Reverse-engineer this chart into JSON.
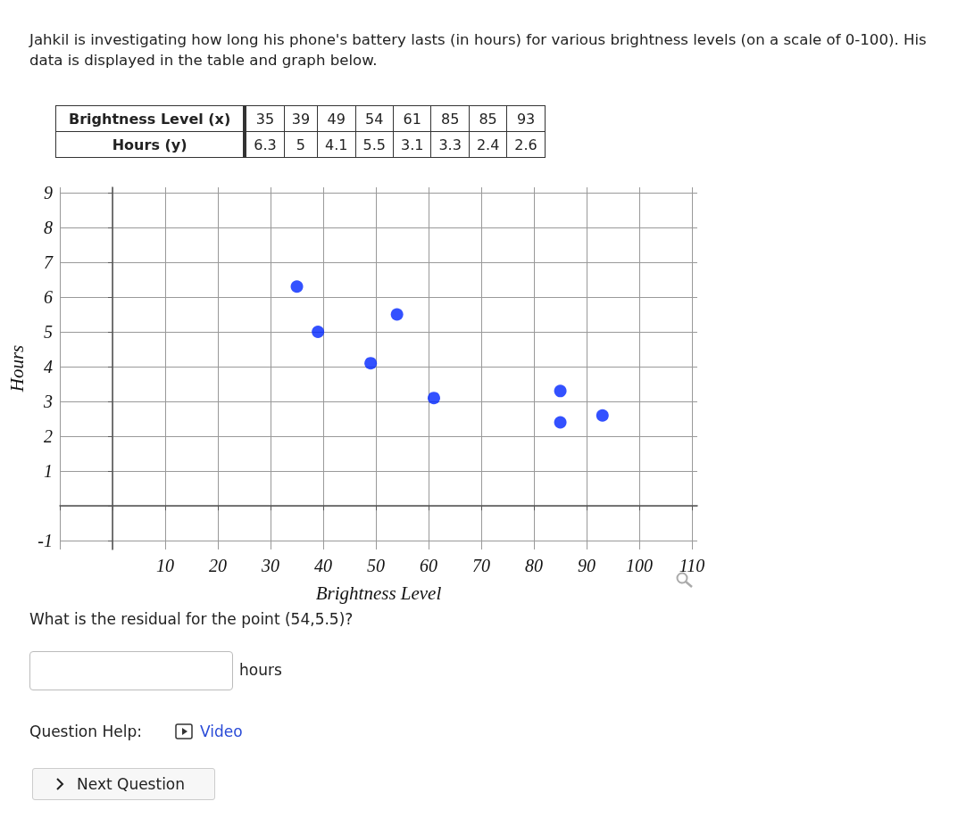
{
  "chart_data": [
    {
      "type": "other",
      "title": "Jahkil is investigating how long his phone's battery lasts (in hours) for various brightness levels (on a scale of 0-100). His data is displayed in the table and graph below.",
      "annotations": [
        "Brightness Level (x)",
        "35",
        "39",
        "49",
        "54",
        "61",
        "85",
        "85",
        "93",
        "Hours (y)",
        "6.3",
        "5",
        "4.1",
        "5.5",
        "3.1",
        "3.3",
        "2.4",
        "2.6"
      ]
    },
    {
      "type": "scatter",
      "xlabel": "Brightness Level",
      "ylabel": "Hours",
      "x": [
        35,
        39,
        49,
        54,
        61,
        85,
        85,
        93
      ],
      "values": [
        6.3,
        5,
        4.1,
        5.5,
        3.1,
        3.3,
        2.4,
        2.6
      ],
      "color": "#0026ff",
      "marker": "circle",
      "grid": true,
      "xlim": [
        -10,
        111
      ],
      "xticks": [
        {
          "value": -10,
          "label": null
        },
        {
          "value": 0,
          "label": null
        },
        10,
        20,
        30,
        40,
        50,
        60,
        70,
        80,
        90,
        100,
        110
      ],
      "ylim": [
        -1.25,
        9.15
      ],
      "yticks": [
        -1,
        {
          "value": 0,
          "label": null
        },
        1,
        2,
        3,
        4,
        5,
        6,
        7,
        8,
        9
      ],
      "annotations": [
        "What is the residual for the point (54,5.5)?",
        "hours",
        "Question Help:",
        "Video",
        "Next Question"
      ]
    }
  ]
}
